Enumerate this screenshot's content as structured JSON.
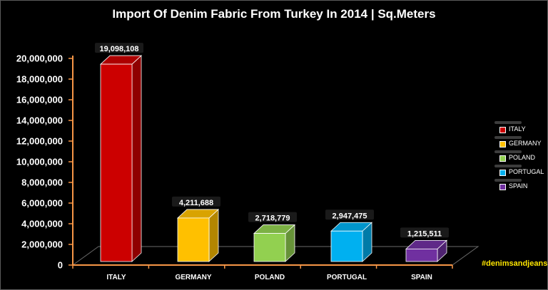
{
  "chart_data": {
    "type": "bar",
    "title": "Import Of Denim Fabric From Turkey In 2014 | Sq.Meters",
    "categories": [
      "ITALY",
      "GERMANY",
      "POLAND",
      "PORTUGAL",
      "SPAIN"
    ],
    "values": [
      19098108,
      4211688,
      2718779,
      2947475,
      1215511
    ],
    "value_labels": [
      "19,098,108",
      "4,211,688",
      "2,718,779",
      "2,947,475",
      "1,215,511"
    ],
    "ylim": [
      0,
      20000000
    ],
    "yticks": [
      "0",
      "2,000,000",
      "4,000,000",
      "6,000,000",
      "8,000,000",
      "10,000,000",
      "12,000,000",
      "14,000,000",
      "16,000,000",
      "18,000,000",
      "20,000,000"
    ],
    "xlabel": "",
    "ylabel": "",
    "grid": false,
    "legend_position": "right",
    "colors": [
      "#cc0000",
      "#ffc000",
      "#92d050",
      "#00b0f0",
      "#7030a0"
    ],
    "background": "#000000",
    "axis_color": "#f79646"
  },
  "legend": {
    "items": [
      "ITALY",
      "GERMANY",
      "POLAND",
      "PORTUGAL",
      "SPAIN"
    ]
  },
  "watermark": "#denimsandjeans"
}
